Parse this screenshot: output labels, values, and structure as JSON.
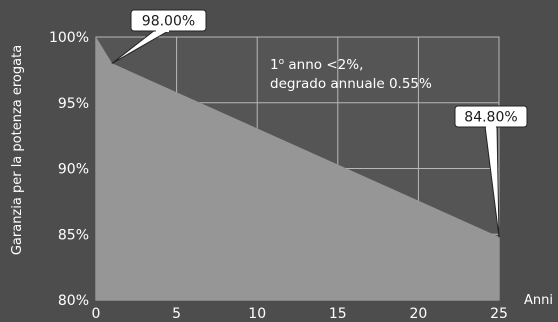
{
  "chart_data": {
    "type": "area",
    "xlabel": "Anni",
    "ylabel": "Garanzia per la potenza erogata",
    "xlim": [
      0,
      25
    ],
    "ylim": [
      80,
      100
    ],
    "x_ticks": [
      "0",
      "5",
      "10",
      "15",
      "20",
      "25"
    ],
    "y_ticks": [
      "80%",
      "85%",
      "90%",
      "95%",
      "100%"
    ],
    "grid": true,
    "series": [
      {
        "x": [
          0,
          1,
          25
        ],
        "y": [
          100,
          98.0,
          84.8
        ],
        "color": "#969696"
      }
    ],
    "callouts": [
      {
        "x": 1,
        "y": 98.0,
        "label": "98.00%"
      },
      {
        "x": 25,
        "y": 84.8,
        "label": "84.80%"
      }
    ],
    "annotation": {
      "line1_prefix": "1",
      "line1_sup": "o",
      "line1_rest": " anno <2%,",
      "line2": "degrado annuale 0.55%"
    },
    "colors": {
      "background": "#4d4d4d",
      "plot": "#555555",
      "fill": "#969696",
      "grid": "#b8b8b8"
    }
  }
}
